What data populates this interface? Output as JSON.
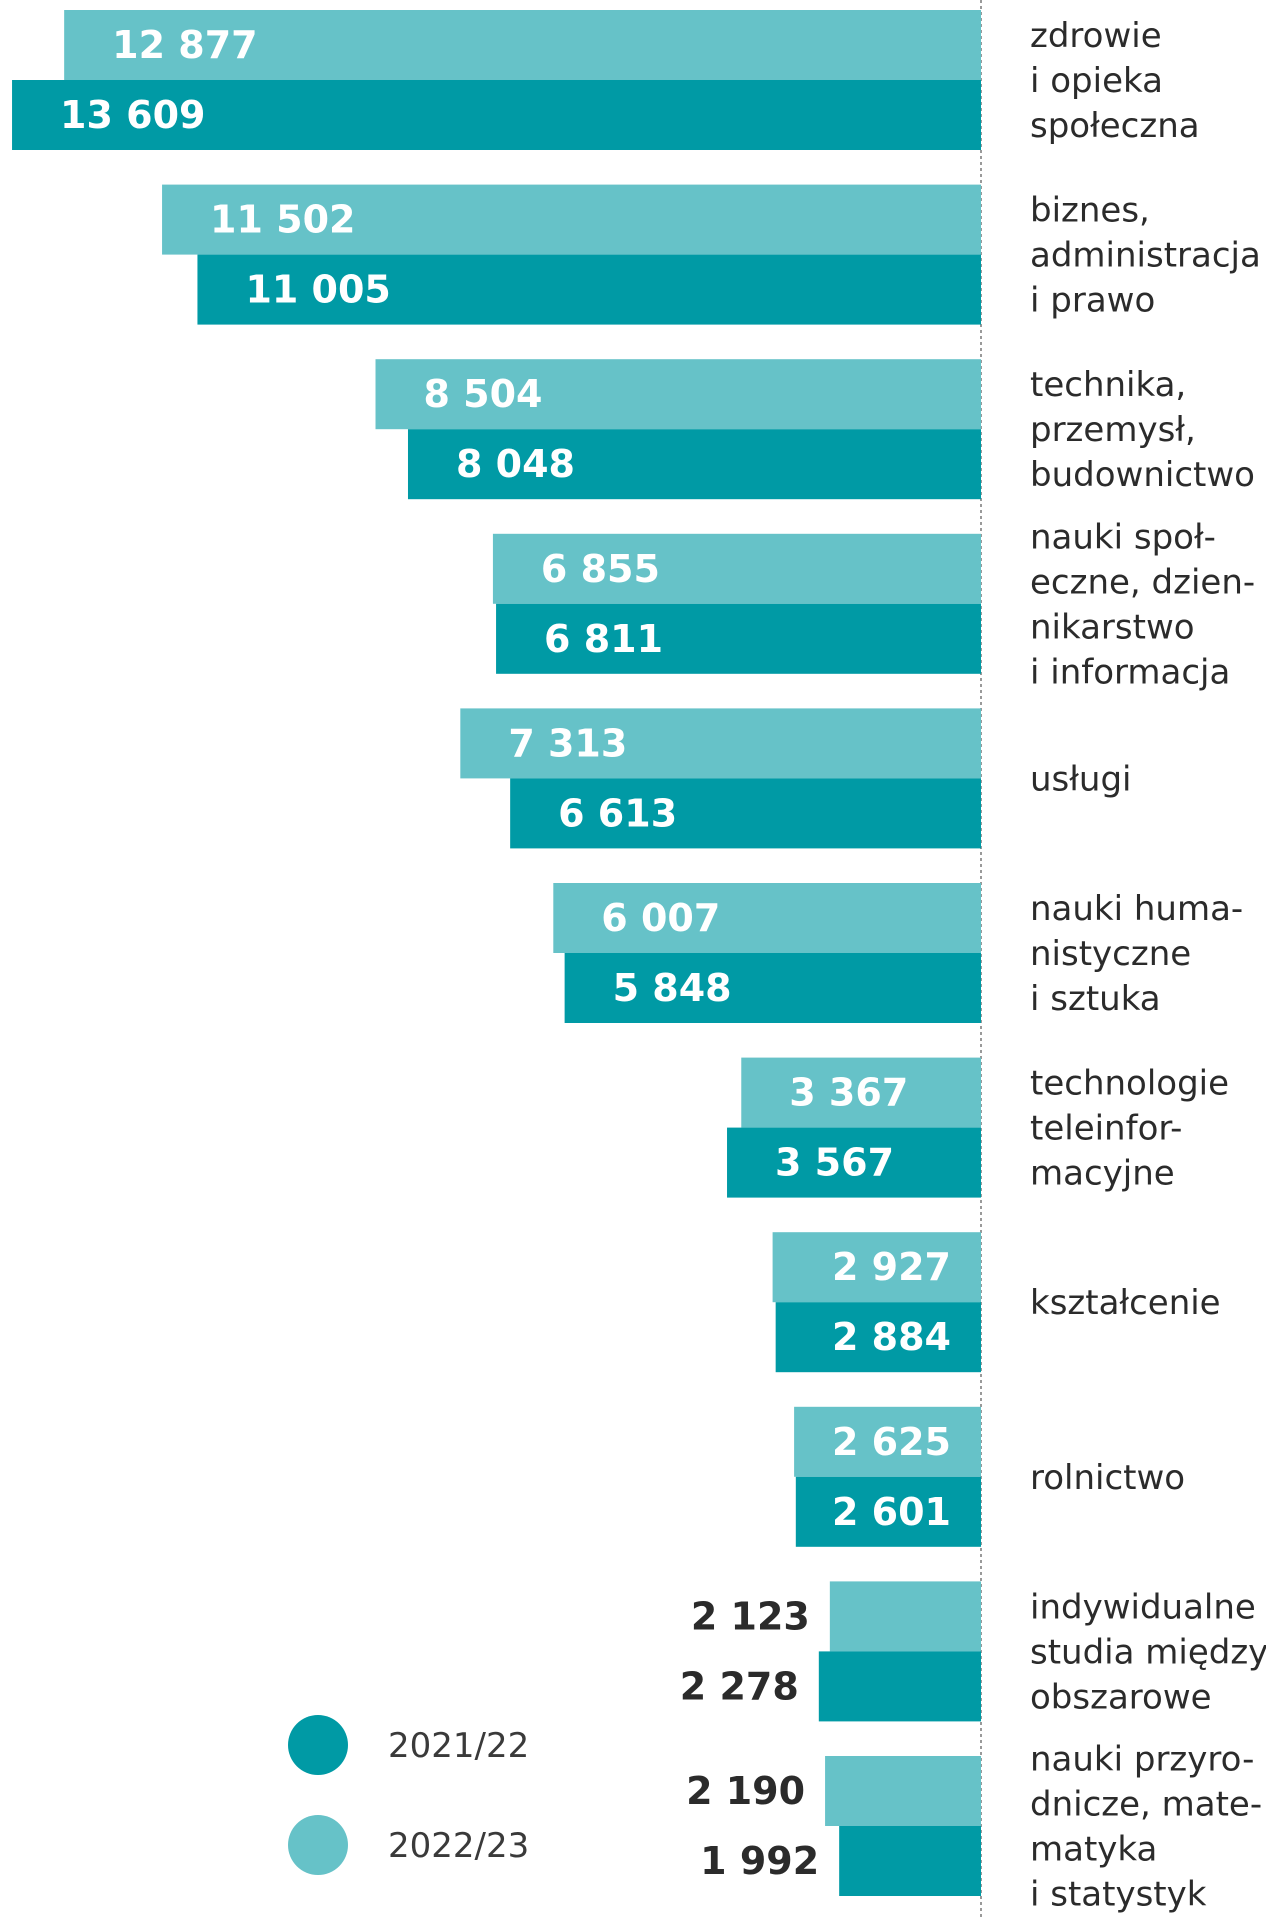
{
  "chart_data": {
    "type": "bar",
    "orientation": "horizontal",
    "categories": [
      [
        "zdrowie",
        "i opieka",
        "społeczna"
      ],
      [
        "biznes,",
        "administracja",
        "i prawo"
      ],
      [
        "technika,",
        "przemysł,",
        "budownictwo"
      ],
      [
        "nauki społ-",
        "eczne, dzien-",
        "nikarstwo",
        "i informacja"
      ],
      [
        "usługi"
      ],
      [
        "nauki huma-",
        "nistyczne",
        "i sztuka"
      ],
      [
        "technologie",
        "teleinfor-",
        "macyjne"
      ],
      [
        "kształcenie"
      ],
      [
        "rolnictwo"
      ],
      [
        "indywidualne",
        "studia między-",
        "obszarowe"
      ],
      [
        "nauki przyro-",
        "dnicze, mate-",
        "matyka",
        "i statystyk"
      ]
    ],
    "series": [
      {
        "name": "2022/23",
        "color": "#66c2c8",
        "values": [
          12877,
          11502,
          8504,
          6855,
          7313,
          6007,
          3367,
          2927,
          2625,
          2123,
          2190
        ],
        "labels": [
          "12 877",
          "11 502",
          "8 504",
          "6 855",
          "7 313",
          "6 007",
          "3 367",
          "2 927",
          "2 625",
          "2 123",
          "2 190"
        ]
      },
      {
        "name": "2021/22",
        "color": "#009aa5",
        "values": [
          13609,
          11005,
          8048,
          6811,
          6613,
          5848,
          3567,
          2884,
          2601,
          2278,
          1992
        ],
        "labels": [
          "13 609",
          "11 005",
          "8 048",
          "6 811",
          "6 613",
          "5 848",
          "3 567",
          "2 884",
          "2 601",
          "2 278",
          "1 992"
        ]
      }
    ],
    "legend": {
      "placement": "bottom-left",
      "items": [
        {
          "label": "2021/22",
          "color": "#009aa5"
        },
        {
          "label": "2022/23",
          "color": "#66c2c8"
        }
      ]
    },
    "title": "",
    "xlabel": "",
    "ylabel": "",
    "grid": false
  }
}
